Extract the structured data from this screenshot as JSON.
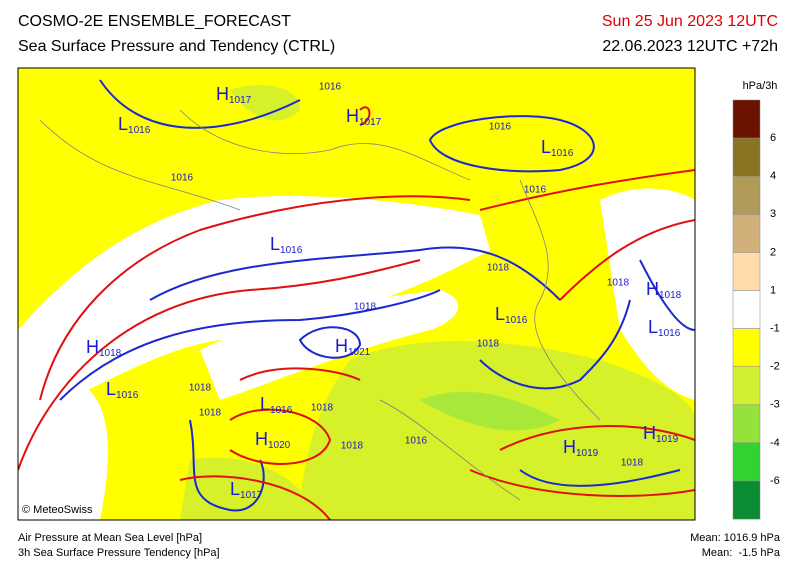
{
  "header": {
    "title": "COSMO-2E ENSEMBLE_FORECAST",
    "subtitle": "Sea Surface Pressure and Tendency (CTRL)",
    "valid_time": "Sun 25 Jun 2023 12UTC",
    "run_time": "22.06.2023 12UTC +72h"
  },
  "colorbar": {
    "unit": "hPa/3h",
    "labels": [
      "6",
      "4",
      "3",
      "2",
      "1",
      "-1",
      "-2",
      "-3",
      "-4",
      "-6"
    ],
    "colors": [
      "#6b1200",
      "#8a7424",
      "#b09a58",
      "#d2b07a",
      "#ffdcaa",
      "#ffffff",
      "#ffff00",
      "#d2f032",
      "#96e23c",
      "#32d232",
      "#0a8c32"
    ]
  },
  "map": {
    "credit": "© MeteoSwiss",
    "centers": [
      {
        "letter": "H",
        "value": "1017"
      },
      {
        "letter": "L",
        "value": "1016"
      },
      {
        "letter": "H",
        "value": "1017"
      },
      {
        "letter": "L",
        "value": "1016"
      },
      {
        "letter": "L",
        "value": "1016"
      },
      {
        "letter": "L",
        "value": "1016"
      },
      {
        "letter": "H",
        "value": "1018"
      },
      {
        "letter": "H",
        "value": "1021"
      },
      {
        "letter": "L",
        "value": "1016"
      },
      {
        "letter": "L",
        "value": "1016"
      },
      {
        "letter": "H",
        "value": "1020"
      },
      {
        "letter": "L",
        "value": "1017"
      },
      {
        "letter": "H",
        "value": "1019"
      },
      {
        "letter": "H",
        "value": "1019"
      },
      {
        "letter": "H",
        "value": "1018"
      },
      {
        "letter": "L",
        "value": "1016"
      }
    ],
    "isobar_labels": [
      "1016",
      "1016",
      "1016",
      "1016",
      "1018",
      "1018",
      "1018",
      "1018",
      "1018",
      "1018",
      "1018",
      "1018",
      "1016",
      "1018"
    ]
  },
  "footer": {
    "line1": "Air Pressure at Mean Sea Level [hPa]",
    "line2": "3h Sea Surface Pressure Tendency [hPa]",
    "mean_pressure": "Mean: 1016.9 hPa",
    "mean_tendency": "Mean:  -1.5 hPa"
  }
}
